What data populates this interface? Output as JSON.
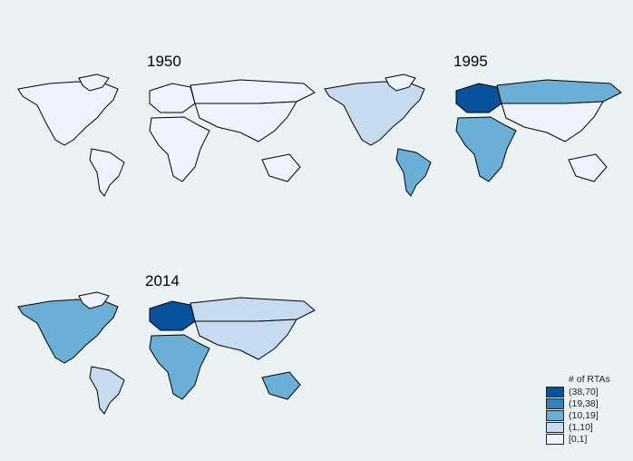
{
  "panels": [
    {
      "title": "1950",
      "fills": {
        "na": 0,
        "greenland": 0,
        "sa": 0,
        "europe": 0,
        "russia": 0,
        "asia": 0,
        "africa": 0,
        "australia": 0
      }
    },
    {
      "title": "1995",
      "fills": {
        "na": 1,
        "greenland": 0,
        "sa": 2,
        "europe": 4,
        "russia": 2,
        "asia": 0,
        "africa": 2,
        "australia": 0
      }
    },
    {
      "title": "2014",
      "fills": {
        "na": 2,
        "greenland": 0,
        "sa": 1,
        "europe": 4,
        "russia": 1,
        "asia": 1,
        "africa": 2,
        "australia": 2
      }
    }
  ],
  "legend": {
    "title": "# of RTAs",
    "items": [
      {
        "label": "(38,70]",
        "color": "#08519c"
      },
      {
        "label": "(19,38]",
        "color": "#3182bd"
      },
      {
        "label": "(10,19]",
        "color": "#6baed6"
      },
      {
        "label": "(1,10]",
        "color": "#c6dbef"
      },
      {
        "label": "[0,1]",
        "color": "#eff3ff"
      }
    ]
  },
  "colors": {
    "background": "#eaf2f3",
    "border": "#000000"
  }
}
